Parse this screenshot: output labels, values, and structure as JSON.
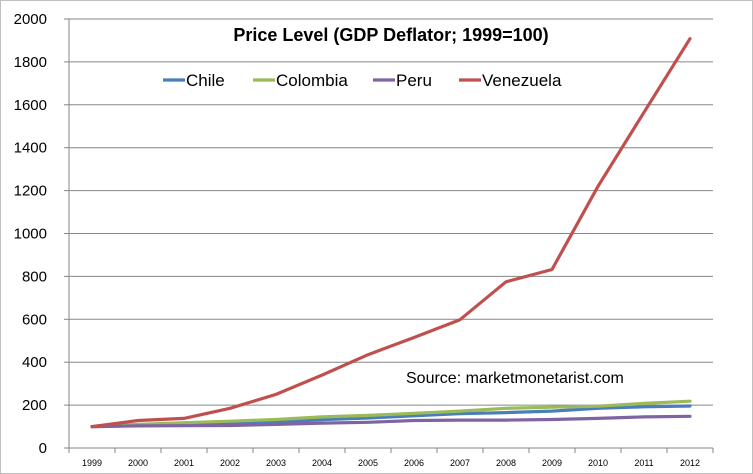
{
  "chart_data": {
    "type": "line",
    "title": "Price Level (GDP Deflator; 1999=100)",
    "xlabel": "",
    "ylabel": "",
    "categories": [
      "1999",
      "2000",
      "2001",
      "2002",
      "2003",
      "2004",
      "2005",
      "2006",
      "2007",
      "2008",
      "2009",
      "2010",
      "2011",
      "2012"
    ],
    "ylim": [
      0,
      2000
    ],
    "yticks": [
      "0",
      "200",
      "400",
      "600",
      "800",
      "1000",
      "1200",
      "1400",
      "1600",
      "1800",
      "2000"
    ],
    "grid": true,
    "legend_position": "top-left",
    "series": [
      {
        "name": "Chile",
        "color": "#4a7ebb",
        "values": [
          100,
          105,
          108,
          112,
          120,
          132,
          140,
          150,
          160,
          165,
          172,
          185,
          192,
          196
        ]
      },
      {
        "name": "Colombia",
        "color": "#9bbb59",
        "values": [
          100,
          110,
          118,
          125,
          133,
          145,
          152,
          162,
          172,
          185,
          190,
          195,
          208,
          218
        ]
      },
      {
        "name": "Peru",
        "color": "#8064a2",
        "values": [
          100,
          103,
          104,
          105,
          110,
          116,
          120,
          128,
          130,
          130,
          133,
          138,
          145,
          148
        ]
      },
      {
        "name": "Venezuela",
        "color": "#c0504d",
        "values": [
          100,
          128,
          138,
          185,
          250,
          340,
          435,
          515,
          598,
          775,
          832,
          1220,
          1565,
          1908
        ]
      }
    ],
    "annotations": [
      {
        "text": "Source: marketmonetarist.com"
      }
    ]
  }
}
